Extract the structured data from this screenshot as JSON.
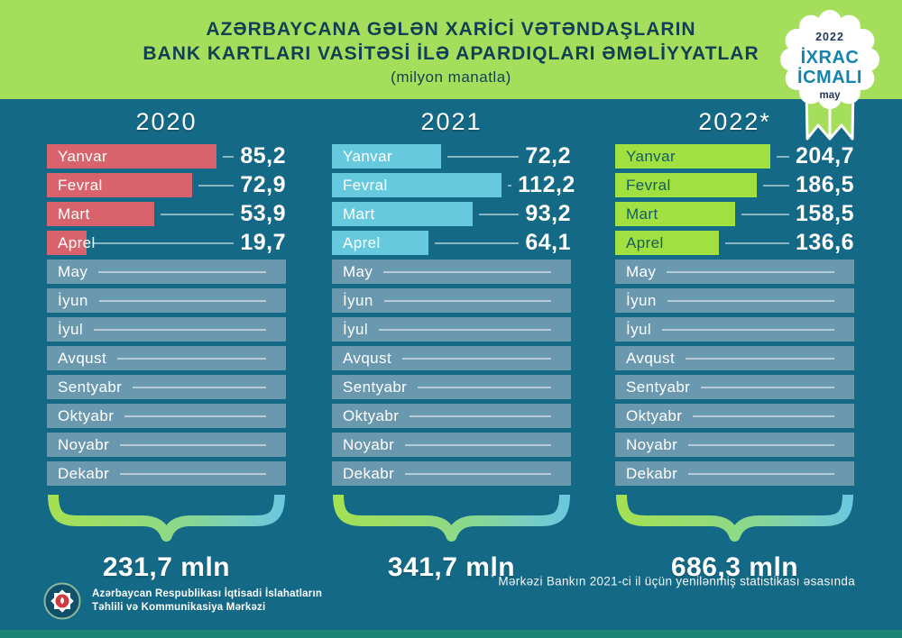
{
  "page": {
    "bg": "#146a86",
    "empty_bar_color": "#6a99af",
    "bottom_strip_color": "#1b8376"
  },
  "header": {
    "title_line1": "AZƏRBAYCANA GƏLƏN XARİCİ VƏTƏNDAŞLARIN",
    "title_line2": "BANK KARTLARI VASİTƏSİ İLƏ APARDIQLARI ƏMƏLİYYATLAR",
    "subtitle": "(milyon manatla)",
    "bg": "#a5de5b",
    "text_color": "#123f55"
  },
  "badge": {
    "year": "2022",
    "line1": "İXRAC",
    "line2": "İCMALI",
    "month": "may"
  },
  "columns": [
    {
      "year": "2020",
      "total": "231,7 mln",
      "bar_color": "#d9636c",
      "label_color": "#ffffff",
      "months": [
        {
          "name": "Yanvar",
          "value": "85,2"
        },
        {
          "name": "Fevral",
          "value": "72,9"
        },
        {
          "name": "Mart",
          "value": "53,9"
        },
        {
          "name": "Aprel",
          "value": "19,7"
        },
        {
          "name": "May",
          "value": ""
        },
        {
          "name": "İyun",
          "value": ""
        },
        {
          "name": "İyul",
          "value": ""
        },
        {
          "name": "Avqust",
          "value": ""
        },
        {
          "name": "Sentyabr",
          "value": ""
        },
        {
          "name": "Oktyabr",
          "value": ""
        },
        {
          "name": "Noyabr",
          "value": ""
        },
        {
          "name": "Dekabr",
          "value": ""
        }
      ]
    },
    {
      "year": "2021",
      "total": "341,7 mln",
      "bar_color": "#66c9de",
      "label_color": "#ffffff",
      "months": [
        {
          "name": "Yanvar",
          "value": "72,2"
        },
        {
          "name": "Fevral",
          "value": "112,2"
        },
        {
          "name": "Mart",
          "value": "93,2"
        },
        {
          "name": "Aprel",
          "value": "64,1"
        },
        {
          "name": "May",
          "value": ""
        },
        {
          "name": "İyun",
          "value": ""
        },
        {
          "name": "İyul",
          "value": ""
        },
        {
          "name": "Avqust",
          "value": ""
        },
        {
          "name": "Sentyabr",
          "value": ""
        },
        {
          "name": "Oktyabr",
          "value": ""
        },
        {
          "name": "Noyabr",
          "value": ""
        },
        {
          "name": "Dekabr",
          "value": ""
        }
      ]
    },
    {
      "year": "2022*",
      "total": "686,3 mln",
      "bar_color": "#a0e040",
      "label_color": "#175b63",
      "months": [
        {
          "name": "Yanvar",
          "value": "204,7"
        },
        {
          "name": "Fevral",
          "value": "186,5"
        },
        {
          "name": "Mart",
          "value": "158,5"
        },
        {
          "name": "Aprel",
          "value": "136,6"
        },
        {
          "name": "May",
          "value": ""
        },
        {
          "name": "İyun",
          "value": ""
        },
        {
          "name": "İyul",
          "value": ""
        },
        {
          "name": "Avqust",
          "value": ""
        },
        {
          "name": "Sentyabr",
          "value": ""
        },
        {
          "name": "Oktyabr",
          "value": ""
        },
        {
          "name": "Noyabr",
          "value": ""
        },
        {
          "name": "Dekabr",
          "value": ""
        }
      ]
    }
  ],
  "footnote": {
    "marker": "*",
    "text": "Mərkəzi Bankın 2021-ci il üçün yenilənmiş statistikası əsasında"
  },
  "organization": {
    "line1": "Azərbaycan Respublikası İqtisadi İslahatların",
    "line2": "Təhlili və Kommunikasiya Mərkəzi"
  },
  "chart_data": {
    "type": "bar",
    "title": "AZƏRBAYCANA GƏLƏN XARİCİ VƏTƏNDAŞLARIN BANK KARTLARI VASİTƏSİ İLƏ APARDIQLARI ƏMƏLİYYATLAR",
    "unit": "milyon manatla",
    "orientation": "horizontal",
    "categories": [
      "Yanvar",
      "Fevral",
      "Mart",
      "Aprel",
      "May",
      "İyun",
      "İyul",
      "Avqust",
      "Sentyabr",
      "Oktyabr",
      "Noyabr",
      "Dekabr"
    ],
    "series": [
      {
        "name": "2020",
        "color": "#d9636c",
        "values": [
          85.2,
          72.9,
          53.9,
          19.7,
          null,
          null,
          null,
          null,
          null,
          null,
          null,
          null
        ],
        "total": 231.7
      },
      {
        "name": "2021",
        "color": "#66c9de",
        "values": [
          72.2,
          112.2,
          93.2,
          64.1,
          null,
          null,
          null,
          null,
          null,
          null,
          null,
          null
        ],
        "total": 341.7
      },
      {
        "name": "2022",
        "color": "#a0e040",
        "values": [
          204.7,
          186.5,
          158.5,
          136.6,
          null,
          null,
          null,
          null,
          null,
          null,
          null,
          null
        ],
        "total": 686.3
      }
    ],
    "annotations": [
      "* Mərkəzi Bankın 2021-ci il üçün yenilənmiş statistikası əsasında"
    ],
    "totals_label_suffix": "mln"
  }
}
